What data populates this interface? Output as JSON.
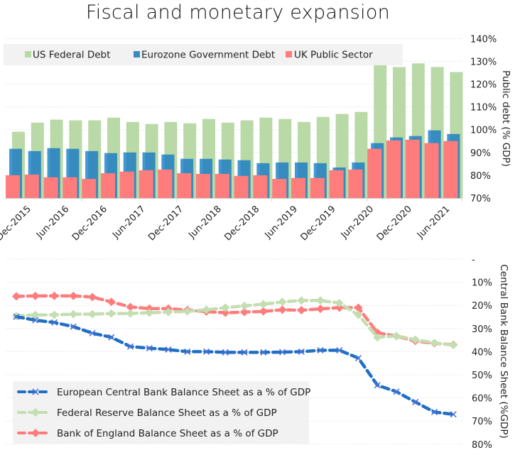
{
  "title": "Fiscal and monetary expansion",
  "chart_data": [
    {
      "type": "bar",
      "title": "Fiscal and monetary expansion",
      "ylabel": "Public debt (% GDP)",
      "yaxis_side": "right",
      "ylim": [
        70,
        140
      ],
      "yticks": [
        "70%",
        "80%",
        "90%",
        "100%",
        "110%",
        "120%",
        "130%",
        "140%"
      ],
      "xtick_labels": [
        "Dec-2015",
        "Jun-2016",
        "Dec-2016",
        "Jun-2017",
        "Dec-2017",
        "Jun-2018",
        "Dec-2018",
        "Jun-2019",
        "Dec-2019",
        "Jun-2020",
        "Dec-2020",
        "Jun-2021"
      ],
      "grid": true,
      "legend_position": "top",
      "series": [
        {
          "name": "US Federal Debt",
          "color": "#b9d9a6",
          "values": [
            99.1,
            103.1,
            104.4,
            104.1,
            104.1,
            105.3,
            103.4,
            102.5,
            103.4,
            102.8,
            104.7,
            103.1,
            104.1,
            105.3,
            104.7,
            103.4,
            105.6,
            106.9,
            107.8,
            128.4,
            127.5,
            129.1,
            127.5,
            125.3
          ]
        },
        {
          "name": "Eurozone Government Debt",
          "color": "#368cbf",
          "values": [
            91.6,
            90.6,
            91.9,
            91.6,
            90.6,
            89.7,
            90.0,
            90.0,
            89.1,
            87.2,
            87.2,
            86.9,
            86.6,
            85.3,
            85.6,
            85.6,
            85.3,
            83.4,
            85.6,
            94.1,
            96.6,
            97.2,
            99.7,
            98.1
          ]
        },
        {
          "name": "UK Public Sector",
          "color": "#ff7c7c",
          "values": [
            80.0,
            80.3,
            79.1,
            79.1,
            78.4,
            80.9,
            81.6,
            82.2,
            82.5,
            80.9,
            80.6,
            80.6,
            79.7,
            80.0,
            78.4,
            78.8,
            78.8,
            82.2,
            82.5,
            91.6,
            95.3,
            95.6,
            94.1,
            95.0
          ]
        }
      ]
    },
    {
      "type": "line",
      "ylabel": "Central Bank Balance Sheet (%GDP)",
      "yaxis_side": "right",
      "y_inverted": true,
      "ylim": [
        0,
        80
      ],
      "yticks": [
        "-",
        "10%",
        "20%",
        "30%",
        "40%",
        "50%",
        "60%",
        "70%",
        "80%"
      ],
      "grid": true,
      "legend_position": "bottom-left",
      "series": [
        {
          "name": "European Central Bank Balance Sheet as a % of GDP",
          "color": "#1f6fc5",
          "marker": "x",
          "values": [
            24.9,
            26.4,
            27.4,
            29.2,
            32.0,
            33.8,
            37.8,
            38.5,
            39.1,
            40.0,
            40.0,
            40.3,
            40.3,
            40.3,
            40.2,
            40.0,
            39.4,
            39.4,
            42.8,
            54.5,
            57.3,
            61.8,
            66.1,
            67.1
          ]
        },
        {
          "name": "Federal Reserve Balance Sheet as a % of GDP",
          "color": "#c3deb0",
          "marker": "diamond",
          "values": [
            24.6,
            24.1,
            24.1,
            23.8,
            23.8,
            23.5,
            23.5,
            23.2,
            22.9,
            22.6,
            21.9,
            21.0,
            20.2,
            19.5,
            18.5,
            17.9,
            17.9,
            19.0,
            24.1,
            33.8,
            33.2,
            34.8,
            36.2,
            37.2
          ]
        },
        {
          "name": "Bank of England Balance Sheet as a % of GDP",
          "color": "#ff7c7c",
          "marker": "diamond",
          "values": [
            16.1,
            15.9,
            15.9,
            15.9,
            16.4,
            18.5,
            20.7,
            21.4,
            21.4,
            22.0,
            22.7,
            23.2,
            22.9,
            22.6,
            21.9,
            22.1,
            21.5,
            21.0,
            21.0,
            31.8,
            33.3,
            35.4,
            36.4,
            37.0
          ]
        }
      ]
    }
  ]
}
